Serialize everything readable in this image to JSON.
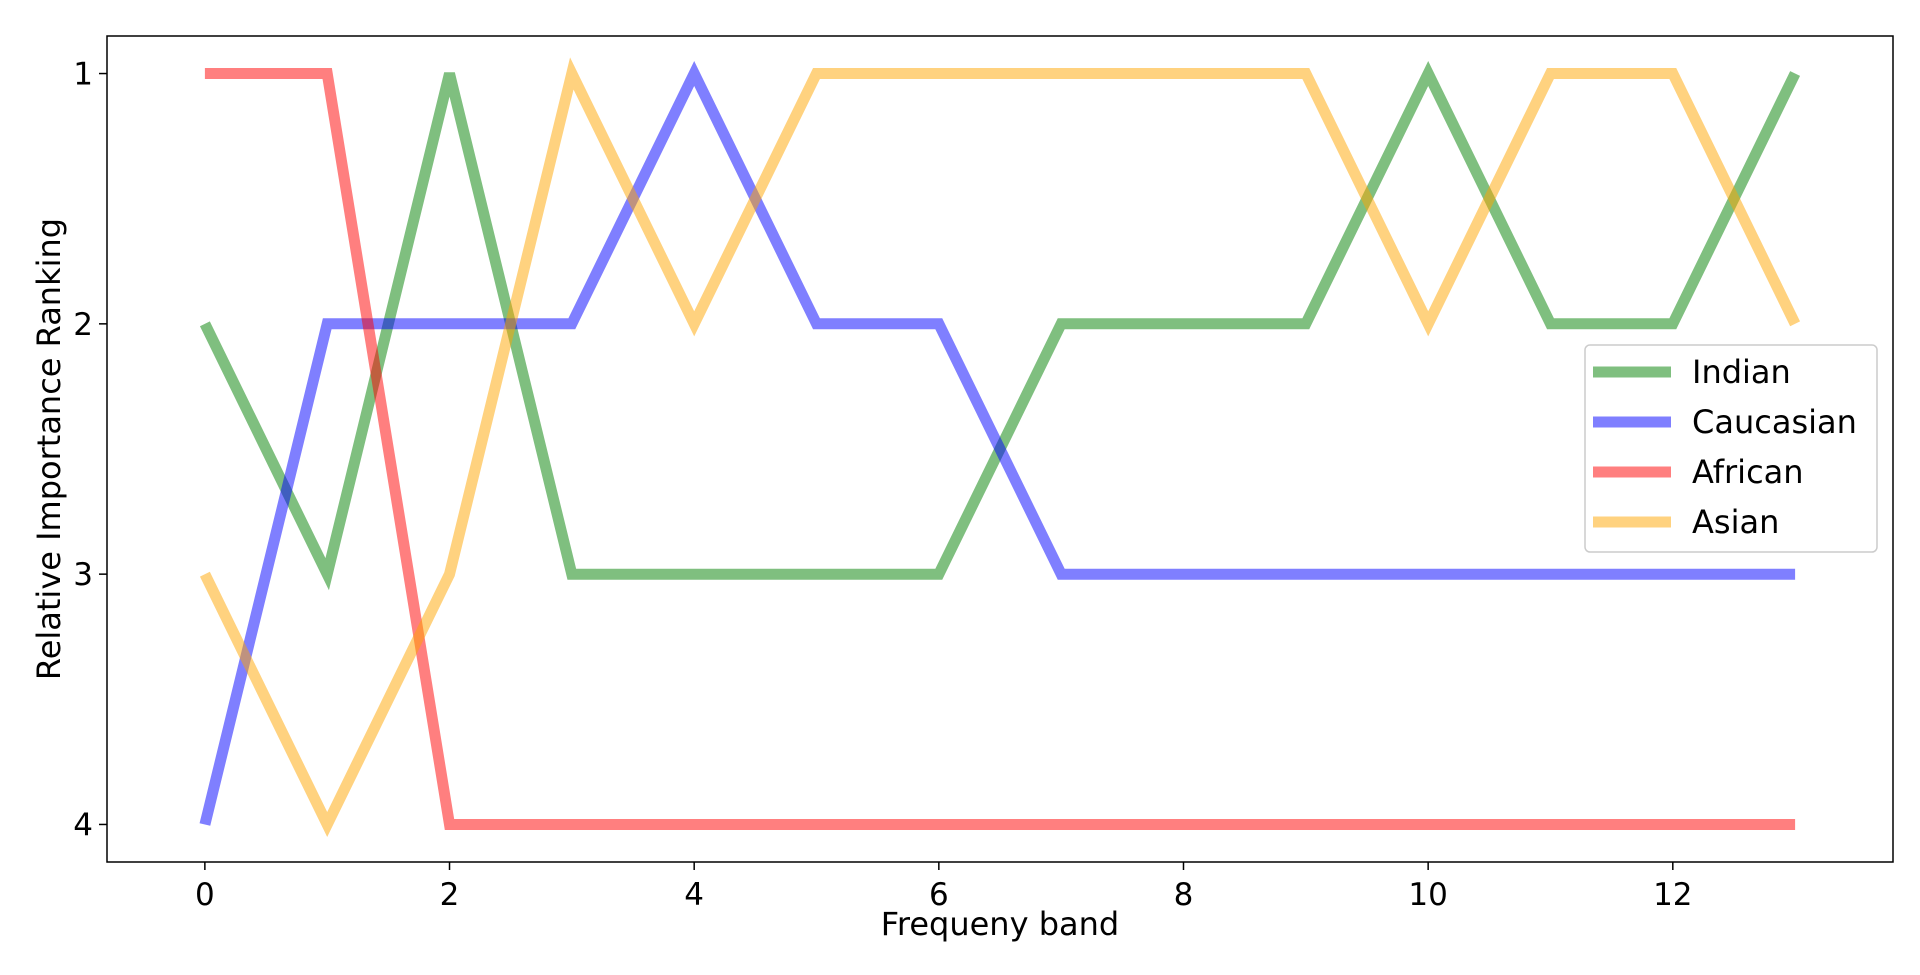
{
  "chart_data": {
    "type": "line",
    "title": "",
    "xlabel": "Frequeny band",
    "ylabel": "Relative Importance Ranking",
    "x": [
      0,
      1,
      2,
      3,
      4,
      5,
      6,
      7,
      8,
      9,
      10,
      11,
      12,
      13
    ],
    "xlim": [
      -0.8,
      13.8
    ],
    "ylim": [
      4.15,
      0.85
    ],
    "y_inverted": true,
    "xticks": [
      0,
      2,
      4,
      6,
      8,
      10,
      12
    ],
    "yticks": [
      1,
      2,
      3,
      4
    ],
    "grid": false,
    "legend_position": "center-right",
    "series": [
      {
        "name": "Indian",
        "color": "#008000",
        "values": [
          2,
          3,
          1,
          3,
          3,
          3,
          3,
          2,
          2,
          2,
          1,
          2,
          2,
          1
        ]
      },
      {
        "name": "Caucasian",
        "color": "#0000ff",
        "values": [
          4,
          2,
          2,
          2,
          1,
          2,
          2,
          3,
          3,
          3,
          3,
          3,
          3,
          3
        ]
      },
      {
        "name": "African",
        "color": "#ff0000",
        "values": [
          1,
          1,
          4,
          4,
          4,
          4,
          4,
          4,
          4,
          4,
          4,
          4,
          4,
          4
        ]
      },
      {
        "name": "Asian",
        "color": "#ffa500",
        "values": [
          3,
          4,
          3,
          1,
          2,
          1,
          1,
          1,
          1,
          1,
          2,
          1,
          1,
          2
        ]
      }
    ]
  }
}
